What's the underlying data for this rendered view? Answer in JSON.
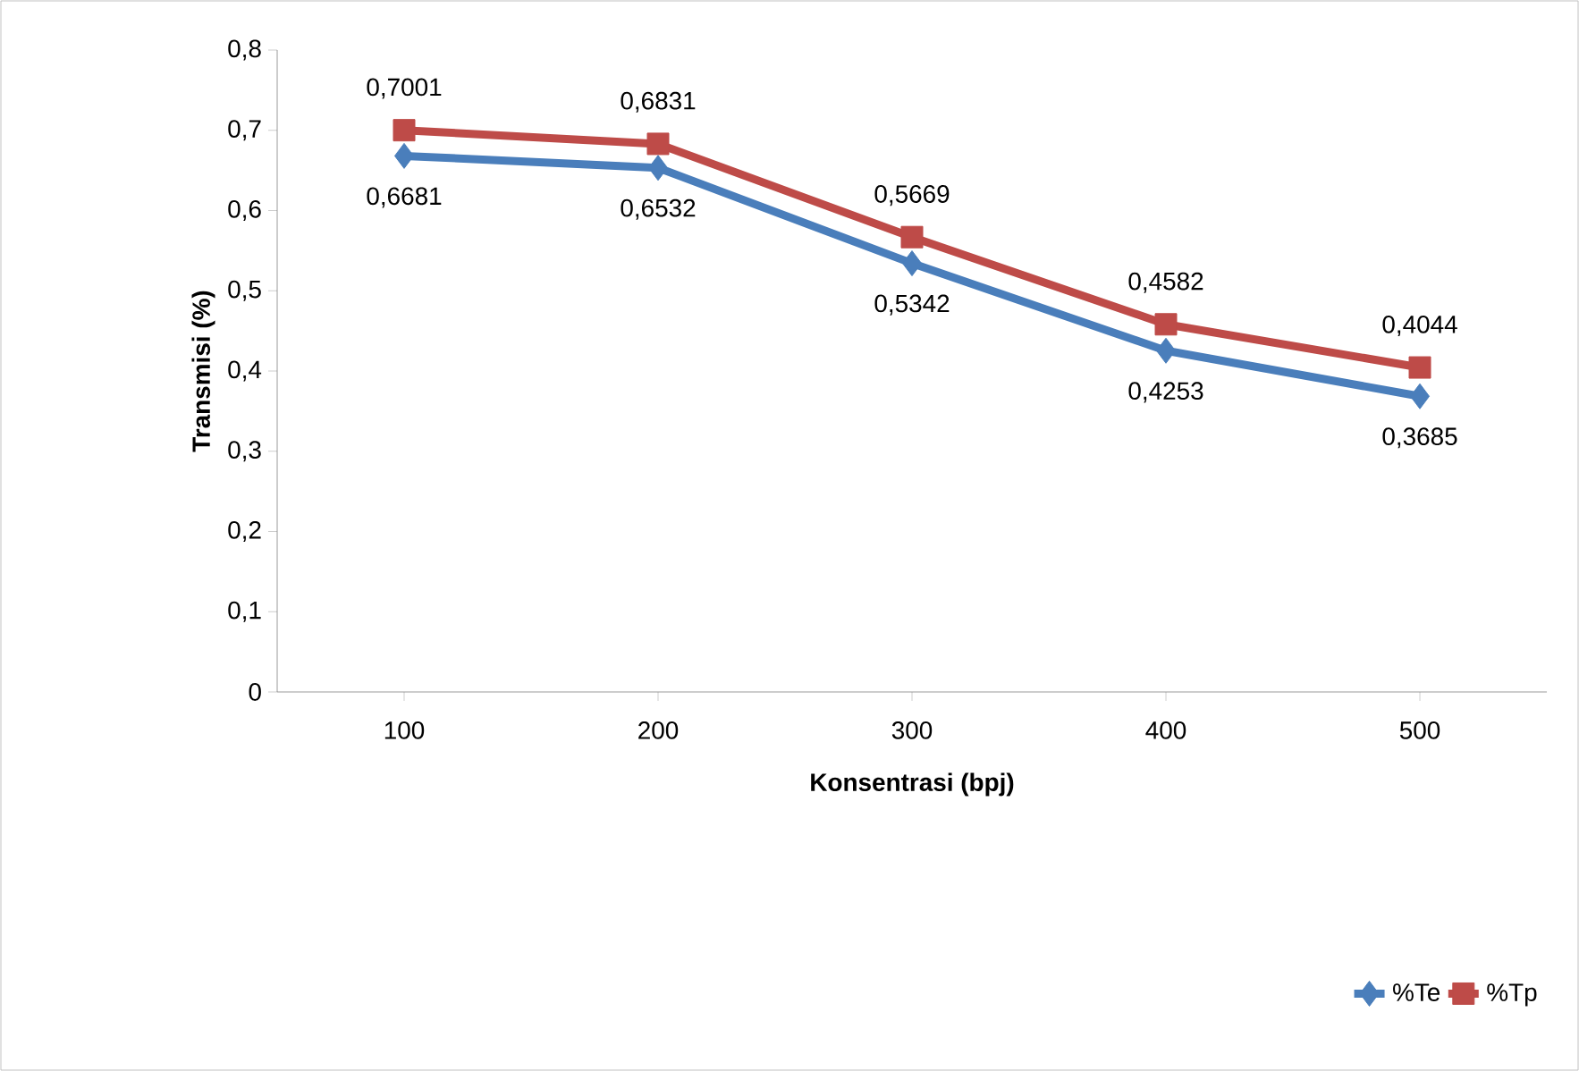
{
  "chart_data": {
    "type": "line",
    "xlabel": "Konsentrasi (bpj)",
    "ylabel": "Transmisi (%)",
    "categories": [
      "100",
      "200",
      "300",
      "400",
      "500"
    ],
    "series": [
      {
        "name": "%Te",
        "color": "#4a7ebb",
        "marker": "diamond",
        "values": [
          0.6681,
          0.6532,
          0.5342,
          0.4253,
          0.3685
        ],
        "value_labels": [
          "0,6681",
          "0,6532",
          "0,5342",
          "0,4253",
          "0,3685"
        ]
      },
      {
        "name": "%Tp",
        "color": "#be4b48",
        "marker": "square",
        "values": [
          0.7001,
          0.6831,
          0.5669,
          0.4582,
          0.4044
        ],
        "value_labels": [
          "0,7001",
          "0,6831",
          "0,5669",
          "0,4582",
          "0,4044"
        ]
      }
    ],
    "ylim": [
      0,
      0.8
    ],
    "yticks": [
      0,
      {
        "value": 0.1,
        "label": "0,1"
      },
      {
        "value": 0.2,
        "label": "0,2"
      },
      {
        "value": 0.3,
        "label": "0,3"
      },
      {
        "value": 0.4,
        "label": "0,4"
      },
      {
        "value": 0.5,
        "label": "0,5"
      },
      {
        "value": 0.6,
        "label": "0,6"
      },
      {
        "value": 0.7,
        "label": "0,7"
      },
      {
        "value": 0.8,
        "label": "0,8"
      }
    ],
    "grid": false,
    "legend": "bottom right"
  }
}
